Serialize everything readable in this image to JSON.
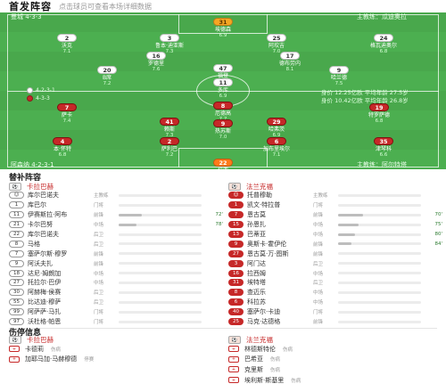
{
  "header": {
    "title": "首发阵容",
    "subtitle": "点击球员可查看本场详细数据"
  },
  "pitch": {
    "home_team_label": "曼城 4-3-3",
    "away_team_label": "阿森纳 4-2-3-1",
    "home_coach": "主教练：瓜迪奥拉",
    "away_coach": "主教练：阿尔特塔",
    "legend": [
      {
        "label": "4-2-3-1",
        "color": "#ffffff"
      },
      {
        "label": "4-3-3",
        "color": "#c62828"
      }
    ],
    "home_stats": "身价 12.25亿欧 平均年龄 27.5岁",
    "away_stats": "身价 10.42亿欧 平均年龄 26.8岁",
    "home_players": [
      {
        "num": "31",
        "name": "埃德森",
        "rating": "6.9",
        "gk": true
      },
      {
        "num": "2",
        "name": "沃克",
        "rating": "7.1"
      },
      {
        "num": "3",
        "name": "鲁本·迪亚斯",
        "rating": "7.3"
      },
      {
        "num": "25",
        "name": "阿坎吉",
        "rating": "7.0"
      },
      {
        "num": "24",
        "name": "格瓦迪奥尔",
        "rating": "6.8"
      },
      {
        "num": "16",
        "name": "罗德里",
        "rating": "7.6"
      },
      {
        "num": "17",
        "name": "德布劳内",
        "rating": "8.1"
      },
      {
        "num": "20",
        "name": "B席",
        "rating": "7.2"
      },
      {
        "num": "47",
        "name": "福登",
        "rating": "7.4"
      },
      {
        "num": "9",
        "name": "哈兰德",
        "rating": "7.5"
      },
      {
        "num": "11",
        "name": "多库",
        "rating": "6.9"
      }
    ],
    "away_players": [
      {
        "num": "22",
        "name": "拉亚",
        "rating": "7.0",
        "gk": true
      },
      {
        "num": "4",
        "name": "本·怀特",
        "rating": "6.8"
      },
      {
        "num": "2",
        "name": "萨利巴",
        "rating": "7.2"
      },
      {
        "num": "6",
        "name": "加布里埃尔",
        "rating": "7.1"
      },
      {
        "num": "35",
        "name": "津琴科",
        "rating": "6.6"
      },
      {
        "num": "41",
        "name": "赖斯",
        "rating": "7.3"
      },
      {
        "num": "29",
        "name": "哈弗茨",
        "rating": "6.9"
      },
      {
        "num": "7",
        "name": "萨卡",
        "rating": "7.4"
      },
      {
        "num": "8",
        "name": "厄德高",
        "rating": "7.7"
      },
      {
        "num": "19",
        "name": "特罗萨德",
        "rating": "6.8"
      },
      {
        "num": "9",
        "name": "热苏斯",
        "rating": "7.0"
      }
    ]
  },
  "subs": {
    "section_title": "替补阵容",
    "home_head": "卡拉巴赫",
    "away_head": "法兰克福",
    "home": [
      {
        "num": "",
        "name": "库尔巴诺夫",
        "pos": "主教练",
        "fill": 0,
        "min": ""
      },
      {
        "num": "1",
        "name": "库巴尔",
        "pos": "门将",
        "fill": 0,
        "min": ""
      },
      {
        "num": "11",
        "name": "伊赛斯拉·阿布",
        "pos": "前锋",
        "fill": 0.28,
        "min": "72'"
      },
      {
        "num": "21",
        "name": "卡尔巴努",
        "pos": "中场",
        "fill": 0.22,
        "min": "78'"
      },
      {
        "num": "22",
        "name": "库尔巴诺夫",
        "pos": "后卫",
        "fill": 0,
        "min": ""
      },
      {
        "num": "8",
        "name": "马格",
        "pos": "后卫",
        "fill": 0,
        "min": ""
      },
      {
        "num": "7",
        "name": "塞萨尔斯·穆罗",
        "pos": "前锋",
        "fill": 0,
        "min": ""
      },
      {
        "num": "9",
        "name": "阿沃夫扎",
        "pos": "前锋",
        "fill": 0,
        "min": ""
      },
      {
        "num": "18",
        "name": "达尼·姆朗加",
        "pos": "中场",
        "fill": 0,
        "min": ""
      },
      {
        "num": "27",
        "name": "托拉尔·巴伊",
        "pos": "中场",
        "fill": 0,
        "min": ""
      },
      {
        "num": "30",
        "name": "阿赫梅·侯赛",
        "pos": "后卫",
        "fill": 0,
        "min": ""
      },
      {
        "num": "55",
        "name": "比达迪·穆萨",
        "pos": "后卫",
        "fill": 0,
        "min": ""
      },
      {
        "num": "99",
        "name": "阿萨萨·马扎",
        "pos": "门将",
        "fill": 0,
        "min": ""
      },
      {
        "num": "97",
        "name": "沃杜格·帕恩",
        "pos": "门将",
        "fill": 0,
        "min": ""
      }
    ],
    "away": [
      {
        "num": "",
        "name": "托普穆勒",
        "pos": "主教练",
        "fill": 0,
        "min": ""
      },
      {
        "num": "1",
        "name": "凯文·特拉普",
        "pos": "门将",
        "fill": 0,
        "min": ""
      },
      {
        "num": "7",
        "name": "恩古莫",
        "pos": "前锋",
        "fill": 0.3,
        "min": "70'"
      },
      {
        "num": "15",
        "name": "孙恩扎",
        "pos": "中场",
        "fill": 0.25,
        "min": "75'"
      },
      {
        "num": "13",
        "name": "巴蒂亚",
        "pos": "中场",
        "fill": 0.2,
        "min": "80'"
      },
      {
        "num": "9",
        "name": "奥斯卡·霍伊伦",
        "pos": "前锋",
        "fill": 0.16,
        "min": "84'"
      },
      {
        "num": "27",
        "name": "恩古莫·万·图斯",
        "pos": "前锋",
        "fill": 0,
        "min": ""
      },
      {
        "num": "3",
        "name": "阿门达",
        "pos": "后卫",
        "fill": 0,
        "min": ""
      },
      {
        "num": "16",
        "name": "拉西姆",
        "pos": "中场",
        "fill": 0,
        "min": ""
      },
      {
        "num": "31",
        "name": "埃特塔",
        "pos": "后卫",
        "fill": 0,
        "min": ""
      },
      {
        "num": "8",
        "name": "查迈乐",
        "pos": "中场",
        "fill": 0,
        "min": ""
      },
      {
        "num": "6",
        "name": "科拉苏",
        "pos": "中场",
        "fill": 0,
        "min": ""
      },
      {
        "num": "40",
        "name": "塞萨尔·卡迪",
        "pos": "门将",
        "fill": 0,
        "min": ""
      },
      {
        "num": "25",
        "name": "马克·达德格",
        "pos": "前锋",
        "fill": 0,
        "min": ""
      }
    ]
  },
  "injuries": {
    "section_title": "伤停信息",
    "home_head": "卡拉巴赫",
    "away_head": "法兰克福",
    "home": [
      {
        "name": "卡德莉",
        "reason": "伤病"
      },
      {
        "name": "加耶马加·马赫穆德",
        "reason": "停赛"
      }
    ],
    "away": [
      {
        "name": "林德斯特伦",
        "reason": "伤病"
      },
      {
        "name": "巴希亚",
        "reason": "伤病"
      },
      {
        "name": "克里斯",
        "reason": "伤病"
      },
      {
        "name": "埃利斯·斯基里",
        "reason": "伤病"
      }
    ]
  }
}
